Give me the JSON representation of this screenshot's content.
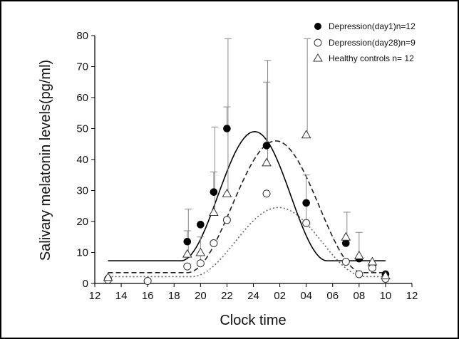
{
  "chart_data": {
    "type": "scatter",
    "title": "",
    "xlabel": "Clock time",
    "ylabel": "Salivary melatonin levels(pg/ml)",
    "x_ticks": [
      "12",
      "14",
      "16",
      "18",
      "20",
      "22",
      "24",
      "02",
      "04",
      "06",
      "08",
      "10",
      "12"
    ],
    "x_range_hours": [
      12,
      36
    ],
    "ylim": [
      0,
      80
    ],
    "y_ticks": [
      0,
      10,
      20,
      30,
      40,
      50,
      60,
      70,
      80
    ],
    "legend_position": "top-right",
    "series": [
      {
        "name": "Depression(day1)n=12",
        "marker": "filled-circle",
        "fit": "solid",
        "points": [
          {
            "x": 13,
            "y": 1.5
          },
          {
            "x": 16,
            "y": 0.8
          },
          {
            "x": 19,
            "y": 13.5
          },
          {
            "x": 20,
            "y": 19
          },
          {
            "x": 21,
            "y": 29.5
          },
          {
            "x": 22,
            "y": 50
          },
          {
            "x": 25,
            "y": 44.5
          },
          {
            "x": 28,
            "y": 26
          },
          {
            "x": 31,
            "y": 13
          },
          {
            "x": 32,
            "y": 8
          },
          {
            "x": 33,
            "y": 6
          },
          {
            "x": 34,
            "y": 3
          }
        ],
        "errors": [
          {
            "x": 19,
            "y": 13.5,
            "upper": 17
          },
          {
            "x": 21,
            "y": 29.5,
            "upper": 36
          },
          {
            "x": 22,
            "y": 50,
            "upper": 57
          },
          {
            "x": 25,
            "y": 44.5,
            "upper": 65
          },
          {
            "x": 28,
            "y": 26,
            "upper": 35
          },
          {
            "x": 32,
            "y": 8,
            "upper": 16.5
          }
        ],
        "fit_curve": {
          "baseline": 7.3,
          "peak": 49,
          "peak_x": 24.1,
          "start_x": 18.5,
          "end_x": 29.6
        }
      },
      {
        "name": "Depression(day28)n=9",
        "marker": "open-circle",
        "fit": "dotted",
        "points": [
          {
            "x": 13,
            "y": 1.2
          },
          {
            "x": 16,
            "y": 0.8
          },
          {
            "x": 19,
            "y": 5.5
          },
          {
            "x": 20,
            "y": 6.5
          },
          {
            "x": 21,
            "y": 13
          },
          {
            "x": 22,
            "y": 20.5
          },
          {
            "x": 25,
            "y": 29
          },
          {
            "x": 28,
            "y": 19.5
          },
          {
            "x": 31,
            "y": 7
          },
          {
            "x": 32,
            "y": 3
          },
          {
            "x": 33,
            "y": 5
          },
          {
            "x": 34,
            "y": 1.5
          }
        ],
        "errors": [
          {
            "x": 20,
            "y": 6.5,
            "upper": 15
          },
          {
            "x": 28,
            "y": 19.5,
            "upper": 26
          }
        ],
        "fit_curve": {
          "baseline": 2.2,
          "peak": 24.5,
          "peak_x": 25.9,
          "start_x": 19.3,
          "end_x": 32.5
        }
      },
      {
        "name": "Healthy controls  n= 12",
        "marker": "open-triangle",
        "fit": "dashed",
        "points": [
          {
            "x": 13,
            "y": 2
          },
          {
            "x": 19,
            "y": 9.5
          },
          {
            "x": 20,
            "y": 10
          },
          {
            "x": 21,
            "y": 23
          },
          {
            "x": 22,
            "y": 29
          },
          {
            "x": 25,
            "y": 39
          },
          {
            "x": 28,
            "y": 48
          },
          {
            "x": 31,
            "y": 15
          },
          {
            "x": 32,
            "y": 9
          },
          {
            "x": 33,
            "y": 7
          },
          {
            "x": 34,
            "y": 2.5
          }
        ],
        "errors": [
          {
            "x": 19,
            "y": 9.5,
            "upper": 24
          },
          {
            "x": 21,
            "y": 23,
            "upper": 50.5
          },
          {
            "x": 22,
            "y": 29,
            "upper": 79
          },
          {
            "x": 25,
            "y": 39,
            "upper": 72
          },
          {
            "x": 28,
            "y": 48,
            "upper": 79
          },
          {
            "x": 31,
            "y": 15,
            "upper": 23
          }
        ],
        "fit_curve": {
          "baseline": 3.5,
          "peak": 46,
          "peak_x": 25.7,
          "start_x": 19,
          "end_x": 32.3
        }
      }
    ]
  }
}
